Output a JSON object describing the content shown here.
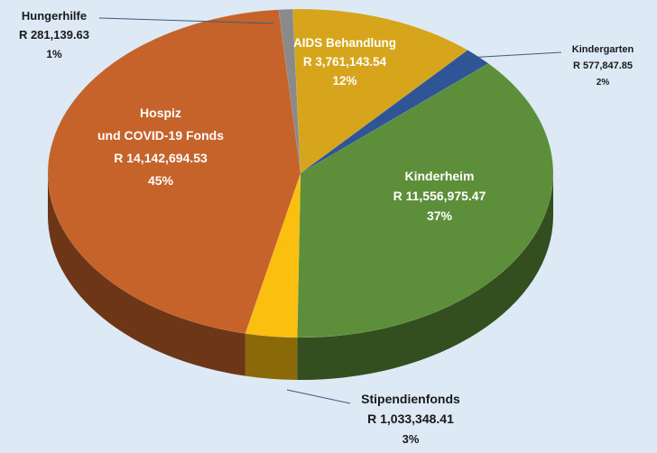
{
  "chart_data": {
    "type": "pie",
    "style": "3d-tilted",
    "slices": [
      {
        "label": "Hungerhilfe",
        "amount": "R 281,139.63",
        "value": 281139.63,
        "percent": "1%",
        "color": "#8a8a8a",
        "label_placement": "outside"
      },
      {
        "label": "AIDS Behandlung",
        "amount": "R 3,761,143.54",
        "value": 3761143.54,
        "percent": "12%",
        "color": "#d6a51b",
        "label_placement": "inside"
      },
      {
        "label": "Kindergarten",
        "amount": "R 577,847.85",
        "value": 577847.85,
        "percent": "2%",
        "color": "#2f5597",
        "label_placement": "outside"
      },
      {
        "label": "Kinderheim",
        "amount": "R 11,556,975.47",
        "value": 11556975.47,
        "percent": "37%",
        "color": "#5d8f3a",
        "label_placement": "inside"
      },
      {
        "label": "Stipendienfonds",
        "amount": "R 1,033,348.41",
        "value": 1033348.41,
        "percent": "3%",
        "color": "#fbbf10",
        "label_placement": "outside"
      },
      {
        "label": "Hospiz\nund COVID-19 Fonds",
        "amount": "R 14,142,694.53",
        "value": 14142694.53,
        "percent": "45%",
        "color": "#c5632a",
        "label_placement": "inside"
      }
    ],
    "legend": "none"
  }
}
